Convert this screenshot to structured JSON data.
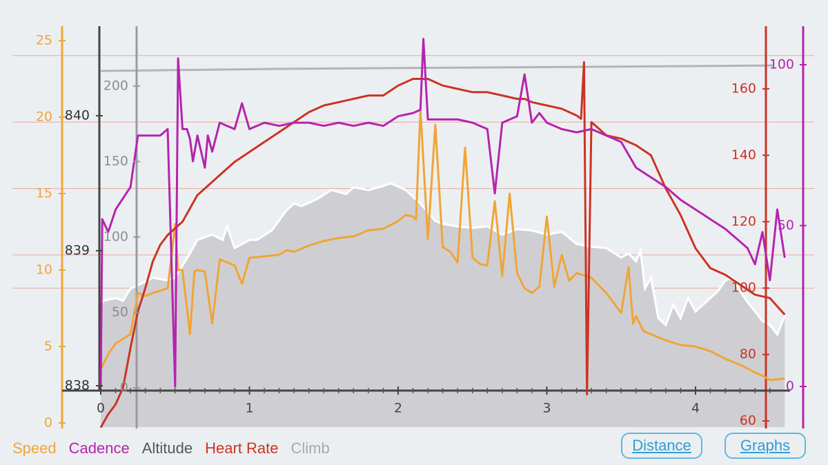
{
  "colors": {
    "speed": "#f0a535",
    "cadence": "#b523ae",
    "altitude": "#9a9a9c",
    "heart_rate": "#cc3322",
    "climb": "#b4b4b8",
    "altitude_area": "#cfcfd3",
    "altitude_line": "#ffffff",
    "hr_grid": "#e7a5a0",
    "button": "#2e9ed6"
  },
  "legend": {
    "speed": "Speed",
    "cadence": "Cadence",
    "altitude": "Altitude",
    "heart_rate": "Heart Rate",
    "climb": "Climb"
  },
  "buttons": {
    "distance": "Distance",
    "graphs": "Graphs"
  },
  "chart_data": {
    "type": "line",
    "x_axis": {
      "label": "",
      "range": [
        0,
        4.6
      ],
      "ticks": [
        "0",
        "1",
        "2",
        "3",
        "4"
      ]
    },
    "axes": {
      "speed": {
        "range": [
          0,
          25
        ],
        "ticks": [
          "0",
          "5",
          "10",
          "15",
          "20",
          "25"
        ]
      },
      "altitude_ft": {
        "range": [
          838,
          840.4
        ],
        "ticks": [
          "838",
          "839",
          "840"
        ]
      },
      "climb": {
        "range": [
          0,
          220
        ],
        "ticks": [
          "0",
          "50",
          "100",
          "150",
          "200"
        ]
      },
      "heart_rate": {
        "range": [
          58,
          170
        ],
        "ticks": [
          "60",
          "80",
          "100",
          "120",
          "140",
          "160"
        ]
      },
      "cadence": {
        "range": [
          0,
          104
        ],
        "ticks": [
          "0",
          "50",
          "100"
        ]
      }
    },
    "series": [
      {
        "name": "Altitude",
        "axis": "altitude_ft",
        "x": [
          0,
          0.02,
          0.1,
          0.15,
          0.2,
          0.28,
          0.35,
          0.45,
          0.5,
          0.6,
          0.65,
          0.75,
          0.82,
          0.85,
          0.9,
          1.0,
          1.05,
          1.15,
          1.25,
          1.3,
          1.35,
          1.45,
          1.55,
          1.65,
          1.7,
          1.8,
          1.9,
          1.95,
          2.05,
          2.15,
          2.25,
          2.3,
          2.4,
          2.5,
          2.6,
          2.7,
          2.8,
          2.9,
          3.0,
          3.05,
          3.1,
          3.2,
          3.3,
          3.4,
          3.5,
          3.55,
          3.6,
          3.63,
          3.66,
          3.7,
          3.75,
          3.8,
          3.85,
          3.9,
          3.95,
          4.0,
          4.05,
          4.15,
          4.2,
          4.25,
          4.3,
          4.35,
          4.4,
          4.45,
          4.5,
          4.55,
          4.6
        ],
        "values": [
          838.6,
          838.63,
          838.65,
          838.63,
          838.72,
          838.76,
          838.8,
          838.78,
          838.8,
          838.98,
          839.08,
          839.12,
          839.08,
          839.18,
          839.02,
          839.08,
          839.08,
          839.15,
          839.3,
          839.35,
          839.33,
          839.38,
          839.45,
          839.42,
          839.47,
          839.45,
          839.48,
          839.5,
          839.45,
          839.35,
          839.22,
          839.2,
          839.18,
          839.17,
          839.18,
          839.12,
          839.16,
          839.15,
          839.12,
          839.13,
          839.14,
          839.05,
          839.03,
          839.02,
          838.95,
          838.98,
          838.92,
          839.0,
          838.72,
          838.8,
          838.5,
          838.45,
          838.6,
          838.5,
          838.65,
          838.55,
          838.6,
          838.7,
          838.78,
          838.8,
          838.7,
          838.62,
          838.55,
          838.48,
          838.45,
          838.38,
          838.52
        ]
      },
      {
        "name": "Speed",
        "axis": "speed",
        "x": [
          0,
          0.05,
          0.1,
          0.2,
          0.25,
          0.3,
          0.35,
          0.45,
          0.5,
          0.52,
          0.55,
          0.6,
          0.63,
          0.65,
          0.7,
          0.75,
          0.8,
          0.9,
          0.95,
          1.0,
          1.1,
          1.2,
          1.25,
          1.3,
          1.4,
          1.5,
          1.6,
          1.7,
          1.8,
          1.9,
          2.0,
          2.05,
          2.1,
          2.12,
          2.15,
          2.2,
          2.25,
          2.3,
          2.35,
          2.4,
          2.45,
          2.5,
          2.55,
          2.6,
          2.65,
          2.7,
          2.75,
          2.8,
          2.85,
          2.9,
          2.95,
          3.0,
          3.05,
          3.1,
          3.15,
          3.2,
          3.3,
          3.4,
          3.5,
          3.55,
          3.58,
          3.6,
          3.65,
          3.7,
          3.8,
          3.9,
          4.0,
          4.1,
          4.2,
          4.3,
          4.4,
          4.45,
          4.5,
          4.6
        ],
        "values": [
          3.5,
          4.5,
          5.2,
          5.8,
          8.5,
          8.3,
          8.5,
          8.8,
          13,
          10,
          10,
          5.8,
          9.9,
          10,
          9.9,
          6.5,
          10.7,
          10.3,
          9.1,
          10.8,
          10.9,
          11.0,
          11.3,
          11.2,
          11.6,
          11.9,
          12.1,
          12.2,
          12.6,
          12.7,
          13.2,
          13.6,
          13.5,
          13.3,
          20.5,
          12,
          19.5,
          11.5,
          11.2,
          10.5,
          18,
          10.8,
          10.4,
          10.3,
          14.5,
          9.6,
          15,
          9.8,
          8.8,
          8.5,
          8.9,
          13.5,
          8.9,
          11,
          9.3,
          9.8,
          9.5,
          8.5,
          7.2,
          10.2,
          6.5,
          7.0,
          6.0,
          5.8,
          5.4,
          5.1,
          5.0,
          4.7,
          4.2,
          3.8,
          3.3,
          3.1,
          2.8,
          2.9
        ]
      },
      {
        "name": "Heart Rate",
        "axis": "heart_rate",
        "x": [
          0,
          0.05,
          0.1,
          0.15,
          0.2,
          0.25,
          0.3,
          0.35,
          0.4,
          0.45,
          0.5,
          0.55,
          0.6,
          0.65,
          0.7,
          0.75,
          0.8,
          0.9,
          1.0,
          1.1,
          1.2,
          1.3,
          1.4,
          1.5,
          1.6,
          1.7,
          1.8,
          1.9,
          2.0,
          2.1,
          2.2,
          2.3,
          2.4,
          2.5,
          2.6,
          2.7,
          2.8,
          2.85,
          2.9,
          3.0,
          3.1,
          3.15,
          3.2,
          3.23,
          3.25,
          3.27,
          3.3,
          3.35,
          3.4,
          3.5,
          3.6,
          3.7,
          3.8,
          3.9,
          4.0,
          4.1,
          4.2,
          4.3,
          4.4,
          4.5,
          4.6
        ],
        "values": [
          58,
          62,
          65,
          70,
          82,
          93,
          100,
          108,
          113,
          116,
          118,
          120,
          124,
          128,
          130,
          132,
          134,
          138,
          141,
          144,
          147,
          150,
          153,
          155,
          156,
          157,
          158,
          158,
          161,
          163,
          163,
          161,
          160,
          159,
          159,
          158,
          157,
          157,
          156,
          155,
          154,
          153,
          152,
          151,
          168,
          68,
          150,
          148,
          146,
          145,
          143,
          140,
          130,
          122,
          112,
          106,
          104,
          101,
          98,
          97,
          92
        ]
      },
      {
        "name": "Cadence",
        "axis": "cadence",
        "x": [
          0,
          0.01,
          0.05,
          0.1,
          0.2,
          0.25,
          0.3,
          0.4,
          0.45,
          0.5,
          0.52,
          0.55,
          0.58,
          0.6,
          0.62,
          0.65,
          0.7,
          0.72,
          0.75,
          0.8,
          0.9,
          0.95,
          1.0,
          1.1,
          1.2,
          1.3,
          1.4,
          1.5,
          1.6,
          1.7,
          1.8,
          1.9,
          2.0,
          2.1,
          2.15,
          2.17,
          2.2,
          2.3,
          2.4,
          2.5,
          2.6,
          2.65,
          2.7,
          2.8,
          2.85,
          2.9,
          2.95,
          3.0,
          3.1,
          3.2,
          3.3,
          3.4,
          3.5,
          3.6,
          3.7,
          3.8,
          3.9,
          4.0,
          4.1,
          4.2,
          4.3,
          4.35,
          4.4,
          4.45,
          4.5,
          4.55,
          4.6
        ],
        "values": [
          0,
          52,
          48,
          55,
          62,
          78,
          78,
          78,
          80,
          0,
          102,
          80,
          80,
          77,
          70,
          78,
          68,
          78,
          73,
          82,
          80,
          88,
          80,
          82,
          81,
          82,
          82,
          81,
          82,
          81,
          82,
          81,
          84,
          85,
          86,
          108,
          83,
          83,
          83,
          82,
          80,
          60,
          82,
          84,
          97,
          82,
          85,
          82,
          80,
          79,
          80,
          78,
          76,
          68,
          65,
          62,
          58,
          55,
          52,
          49,
          45,
          43,
          38,
          48,
          33,
          55,
          40
        ]
      }
    ],
    "legend_position": "bottom-left",
    "grid": "heart-rate horizontal lines"
  }
}
